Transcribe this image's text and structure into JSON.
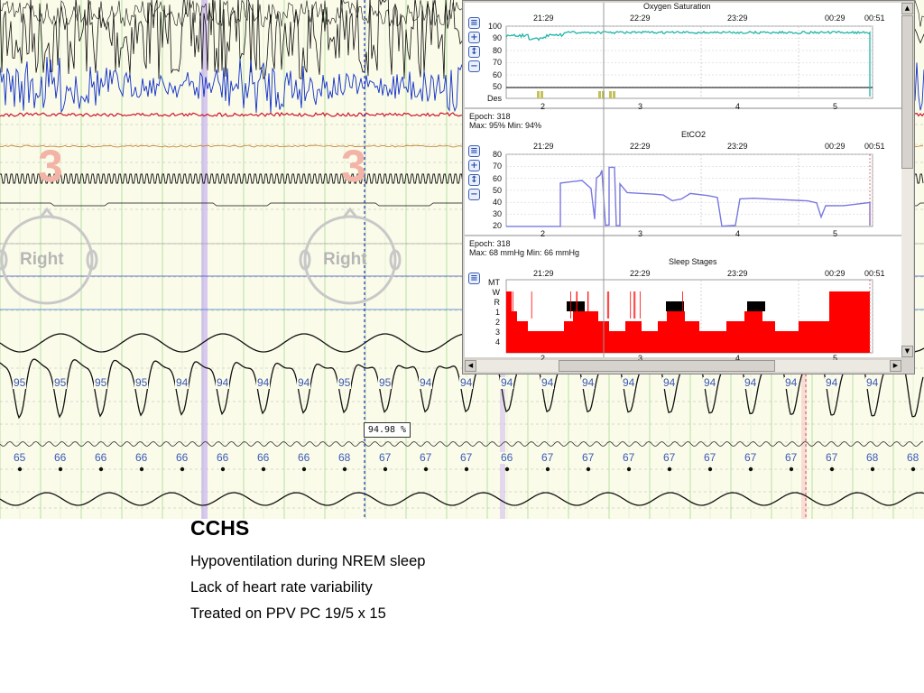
{
  "psg": {
    "spo2_values": [
      "95",
      "95",
      "95",
      "95",
      "94",
      "94",
      "94",
      "94",
      "95",
      "95",
      "94",
      "94",
      "94",
      "94",
      "94",
      "94",
      "94",
      "94",
      "94",
      "94",
      "94",
      "94"
    ],
    "hr_values": [
      "65",
      "66",
      "66",
      "66",
      "66",
      "66",
      "66",
      "66",
      "68",
      "67",
      "67",
      "67",
      "66",
      "67",
      "67",
      "67",
      "67",
      "67",
      "67",
      "67",
      "67",
      "68",
      "68"
    ],
    "cursor_readout": "94.98 %",
    "epoch_marker": "3",
    "head_label": "Right",
    "colors": {
      "eeg_black": "#111111",
      "eeg_blue": "#1030c8",
      "emg_red": "#cc1830",
      "orange": "#c07a20",
      "cursor": "#2a2ad8",
      "highlight": "#c9b3f0",
      "grid_green": "#b6e0a2"
    }
  },
  "trends": {
    "spo2": {
      "title": "Oxygen Saturation",
      "times": [
        "21:29",
        "22:29",
        "23:29",
        "00:29",
        "00:51"
      ],
      "ticks": [
        "100",
        "90",
        "80",
        "70",
        "60",
        "50",
        "Des"
      ],
      "epochs": [
        "2",
        "3",
        "4",
        "5"
      ],
      "info": [
        "Epoch: 318",
        "Max: 95% Min: 94%"
      ],
      "color": "#22b5a8"
    },
    "etco2": {
      "title": "EtCO2",
      "times": [
        "21:29",
        "22:29",
        "23:29",
        "00:29",
        "00:51"
      ],
      "ticks": [
        "80",
        "70",
        "60",
        "50",
        "40",
        "30",
        "20"
      ],
      "epochs": [
        "2",
        "3",
        "4",
        "5"
      ],
      "info": [
        "Epoch: 318",
        "Max: 68 mmHg Min: 66 mmHg"
      ],
      "color": "#7878e0"
    },
    "stages": {
      "title": "Sleep Stages",
      "times": [
        "21:29",
        "22:29",
        "23:29",
        "00:29",
        "00:51"
      ],
      "ticks": [
        "MT",
        "W",
        "R",
        "1",
        "2",
        "3",
        "4"
      ],
      "epochs": [
        "2",
        "3",
        "4",
        "5"
      ],
      "color": "#ff0000"
    },
    "icons": [
      "menu-icon",
      "zoom-in-icon",
      "fit-icon",
      "zoom-out-icon"
    ]
  },
  "slide": {
    "title": "CCHS",
    "bullets": [
      "Hypoventilation during NREM sleep",
      "Lack of heart rate variability",
      "Treated on PPV PC 19/5 x 15"
    ]
  }
}
